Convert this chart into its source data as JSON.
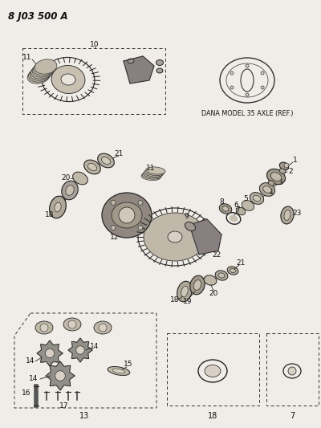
{
  "title": "8 J03 500 A",
  "bg_color": "#f0ede8",
  "dana_label": "DANA MODEL 35 AXLE (REF.)",
  "fig_width": 4.0,
  "fig_height": 5.33,
  "dpi": 100
}
